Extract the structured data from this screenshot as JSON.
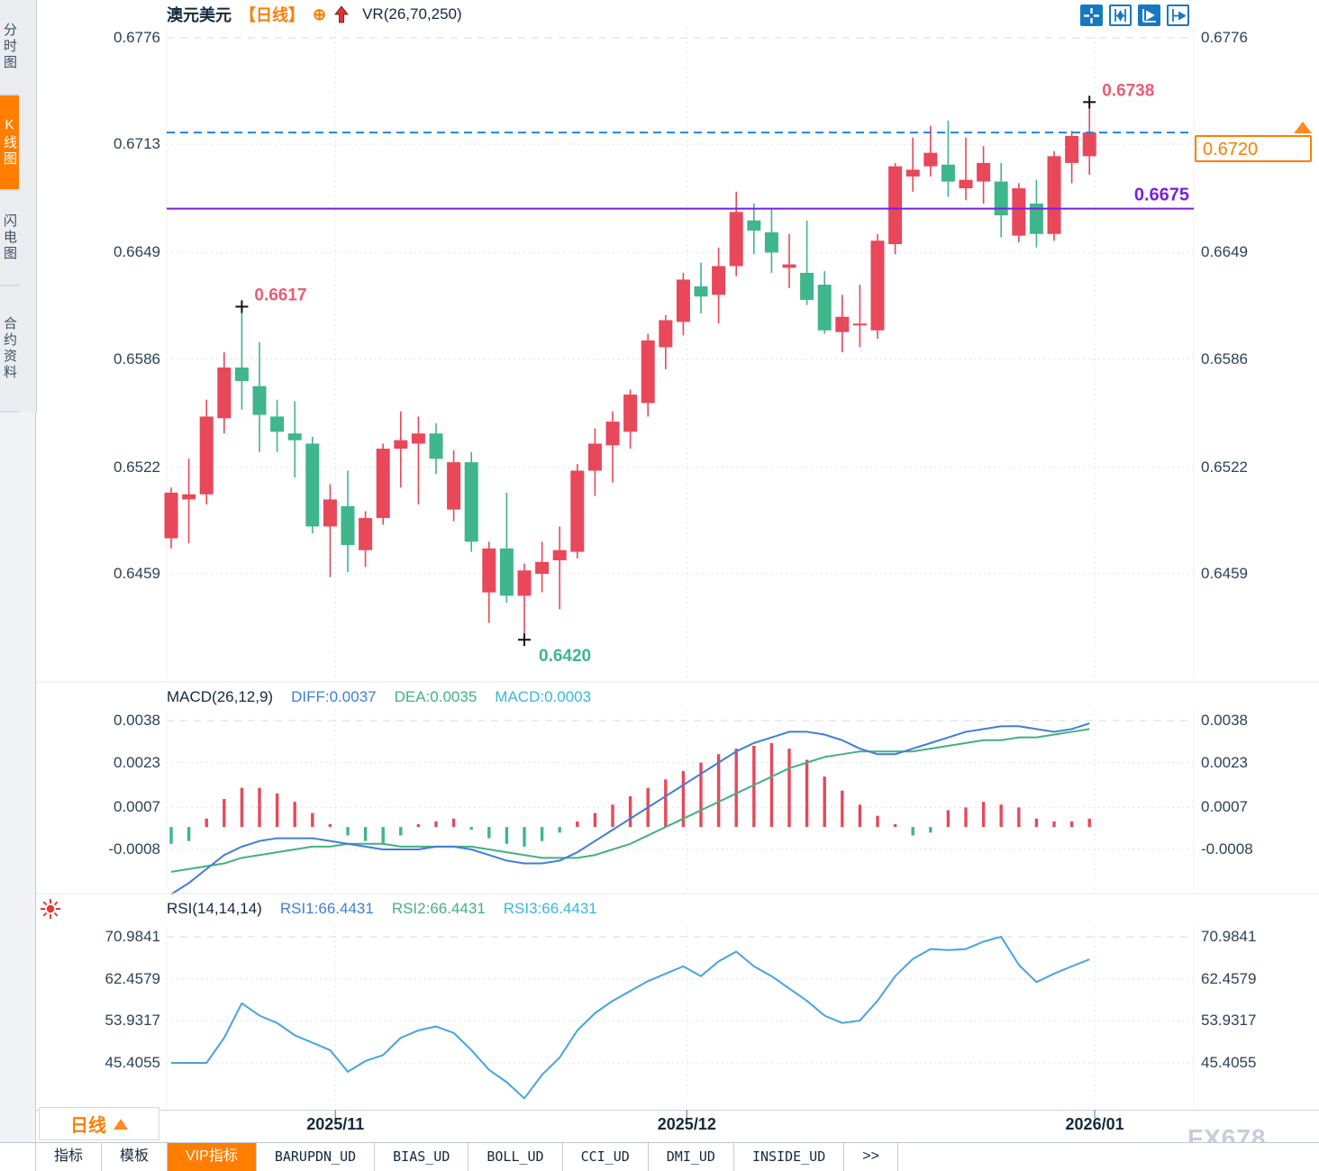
{
  "header": {
    "symbol": "澳元美元",
    "period_tag": "【日线】",
    "indicator_label": "VR(26,70,250)"
  },
  "toolbar_icons": [
    {
      "name": "crosshair-tool-icon",
      "active": true
    },
    {
      "name": "axis-scale-icon",
      "active": false
    },
    {
      "name": "auto-fit-chart-icon",
      "active": true
    },
    {
      "name": "scroll-to-latest-icon",
      "active": false
    }
  ],
  "sidebar": {
    "items": [
      {
        "label": "分时图",
        "active": false
      },
      {
        "label": "K线图",
        "active": true
      },
      {
        "label": "闪电图",
        "active": false
      },
      {
        "label": "合约资料",
        "active": false
      }
    ]
  },
  "macd_header": {
    "title": "MACD(26,12,9)",
    "diff": "DIFF:0.0037",
    "dea": "DEA:0.0035",
    "macd": "MACD:0.0003"
  },
  "rsi_header": {
    "title": "RSI(14,14,14)",
    "rsi1": "RSI1:66.4431",
    "rsi2": "RSI2:66.4431",
    "rsi3": "RSI3:66.4431"
  },
  "y_axis": {
    "main_left": [
      "0.6776",
      "0.6713",
      "0.6649",
      "0.6586",
      "0.6522",
      "0.6459"
    ],
    "main_right": [
      "0.6776",
      "0.6649",
      "0.6586",
      "0.6522",
      "0.6459"
    ],
    "macd": [
      "0.0038",
      "0.0023",
      "0.0007",
      "-0.0008"
    ],
    "rsi": [
      "70.9841",
      "62.4579",
      "53.9317",
      "45.4055"
    ]
  },
  "x_axis": [
    {
      "label": "2025/11",
      "i": 9.3
    },
    {
      "label": "2025/12",
      "i": 29.2
    },
    {
      "label": "2026/01",
      "i": 52.3
    }
  ],
  "price_box": {
    "value": "0.6720",
    "color": "#ff7e00"
  },
  "period_selector": {
    "label": "日线"
  },
  "tabs": [
    {
      "label": "指标",
      "active": false
    },
    {
      "label": "模板",
      "active": false
    },
    {
      "label": "VIP指标",
      "active": true
    },
    {
      "label": "BARUPDN_UD",
      "active": false
    },
    {
      "label": "BIAS_UD",
      "active": false
    },
    {
      "label": "BOLL_UD",
      "active": false
    },
    {
      "label": "CCI_UD",
      "active": false
    },
    {
      "label": "DMI_UD",
      "active": false
    },
    {
      "label": "INSIDE_UD",
      "active": false
    },
    {
      "label": ">>",
      "active": false
    }
  ],
  "watermark": "FX678",
  "chart_data": [
    {
      "type": "candlestick",
      "title": "澳元美元 日线",
      "up_color": "#e8485a",
      "down_color": "#3fb68b",
      "ylim": [
        0.642,
        0.6776
      ],
      "yticks": [
        0.6776,
        0.6713,
        0.6649,
        0.6586,
        0.6522,
        0.6459
      ],
      "candles": [
        [
          0.648,
          0.651,
          0.6474,
          0.6507
        ],
        [
          0.6503,
          0.6527,
          0.6477,
          0.6506
        ],
        [
          0.6506,
          0.6562,
          0.65,
          0.6552
        ],
        [
          0.6551,
          0.659,
          0.6542,
          0.6581
        ],
        [
          0.6581,
          0.6617,
          0.6556,
          0.6573
        ],
        [
          0.657,
          0.6596,
          0.6531,
          0.6553
        ],
        [
          0.6552,
          0.6562,
          0.6531,
          0.6543
        ],
        [
          0.6542,
          0.6561,
          0.6516,
          0.6538
        ],
        [
          0.6536,
          0.654,
          0.6483,
          0.6487
        ],
        [
          0.6487,
          0.6512,
          0.6457,
          0.6503
        ],
        [
          0.6499,
          0.652,
          0.646,
          0.6476
        ],
        [
          0.6473,
          0.6496,
          0.6463,
          0.6492
        ],
        [
          0.6492,
          0.6536,
          0.6488,
          0.6533
        ],
        [
          0.6533,
          0.6555,
          0.651,
          0.6538
        ],
        [
          0.6536,
          0.6552,
          0.65,
          0.6542
        ],
        [
          0.6542,
          0.6548,
          0.6518,
          0.6527
        ],
        [
          0.6497,
          0.6532,
          0.649,
          0.6525
        ],
        [
          0.6525,
          0.6531,
          0.6472,
          0.6478
        ],
        [
          0.6448,
          0.6478,
          0.643,
          0.6474
        ],
        [
          0.6474,
          0.6507,
          0.6442,
          0.6446
        ],
        [
          0.6446,
          0.6465,
          0.642,
          0.6461
        ],
        [
          0.6459,
          0.6478,
          0.6448,
          0.6466
        ],
        [
          0.6467,
          0.6487,
          0.6438,
          0.6473
        ],
        [
          0.6472,
          0.6524,
          0.6468,
          0.652
        ],
        [
          0.652,
          0.6545,
          0.6505,
          0.6536
        ],
        [
          0.6535,
          0.6555,
          0.6513,
          0.6549
        ],
        [
          0.6543,
          0.6568,
          0.6533,
          0.6565
        ],
        [
          0.656,
          0.6601,
          0.6552,
          0.6597
        ],
        [
          0.6593,
          0.6612,
          0.658,
          0.6609
        ],
        [
          0.6608,
          0.6637,
          0.66,
          0.6633
        ],
        [
          0.6629,
          0.6643,
          0.6613,
          0.6623
        ],
        [
          0.6624,
          0.6652,
          0.6607,
          0.6641
        ],
        [
          0.6641,
          0.6685,
          0.6635,
          0.6673
        ],
        [
          0.6668,
          0.6678,
          0.6648,
          0.6662
        ],
        [
          0.6661,
          0.6675,
          0.6637,
          0.6649
        ],
        [
          0.664,
          0.666,
          0.6628,
          0.6642
        ],
        [
          0.6637,
          0.6668,
          0.6618,
          0.6621
        ],
        [
          0.663,
          0.6638,
          0.6601,
          0.6603
        ],
        [
          0.6602,
          0.6624,
          0.659,
          0.6611
        ],
        [
          0.6606,
          0.663,
          0.6593,
          0.6607
        ],
        [
          0.6603,
          0.666,
          0.6598,
          0.6656
        ],
        [
          0.6654,
          0.6702,
          0.6648,
          0.67
        ],
        [
          0.6694,
          0.6717,
          0.6685,
          0.6698
        ],
        [
          0.67,
          0.6724,
          0.6694,
          0.6708
        ],
        [
          0.6701,
          0.6727,
          0.6682,
          0.6691
        ],
        [
          0.6687,
          0.6717,
          0.668,
          0.6692
        ],
        [
          0.6691,
          0.6712,
          0.6678,
          0.6702
        ],
        [
          0.6691,
          0.6702,
          0.6658,
          0.6671
        ],
        [
          0.6659,
          0.669,
          0.6655,
          0.6687
        ],
        [
          0.6678,
          0.6692,
          0.6652,
          0.666
        ],
        [
          0.666,
          0.6709,
          0.6656,
          0.6706
        ],
        [
          0.6702,
          0.6721,
          0.669,
          0.6718
        ],
        [
          0.6706,
          0.6738,
          0.6695,
          0.672
        ]
      ],
      "annotations": [
        {
          "i": 4,
          "price": 0.6617,
          "label": "0.6617",
          "at": "high",
          "color": "#e85d75"
        },
        {
          "i": 20,
          "price": 0.642,
          "label": "0.6420",
          "at": "low",
          "color": "#3fb68b"
        },
        {
          "i": 52,
          "price": 0.6738,
          "label": "0.6738",
          "at": "high",
          "color": "#e85d75"
        }
      ],
      "hlines": [
        {
          "value": 0.672,
          "color": "#1d86e8",
          "dash": "9 6",
          "label": ""
        },
        {
          "value": 0.6675,
          "color": "#7a1fe0",
          "dash": "",
          "label": "0.6675"
        }
      ],
      "last_price": 0.672
    },
    {
      "type": "macd",
      "title": "MACD(26,12,9)",
      "diff": 0.0037,
      "dea": 0.0035,
      "macd": 0.0003,
      "yticks": [
        0.0038,
        0.0023,
        0.0007,
        -0.0008
      ],
      "histogram": [
        -0.0006,
        -0.0005,
        0.0003,
        0.001,
        0.0014,
        0.0014,
        0.0012,
        0.0009,
        0.0005,
        0.0001,
        -0.0003,
        -0.0005,
        -0.0006,
        -0.0003,
        0.0001,
        0.0002,
        0.0003,
        -0.0001,
        -0.0004,
        -0.0006,
        -0.0007,
        -0.0005,
        -0.0002,
        0.0002,
        0.0005,
        0.0008,
        0.0011,
        0.0014,
        0.0017,
        0.002,
        0.0023,
        0.0026,
        0.0028,
        0.0029,
        0.003,
        0.0028,
        0.0024,
        0.0018,
        0.0013,
        0.0008,
        0.0004,
        0.0001,
        -0.0003,
        -0.0002,
        0.0006,
        0.0007,
        0.0009,
        0.0008,
        0.0007,
        0.0003,
        0.0002,
        0.0002,
        0.0003
      ],
      "diff_series": [
        -0.0024,
        -0.002,
        -0.0015,
        -0.001,
        -0.0007,
        -0.0005,
        -0.0004,
        -0.0004,
        -0.0004,
        -0.0005,
        -0.0006,
        -0.0007,
        -0.0008,
        -0.0008,
        -0.0008,
        -0.0007,
        -0.0007,
        -0.0008,
        -0.001,
        -0.0012,
        -0.0013,
        -0.0013,
        -0.0012,
        -0.0009,
        -0.0005,
        -0.0001,
        0.0003,
        0.0007,
        0.0011,
        0.0015,
        0.0019,
        0.0023,
        0.0027,
        0.003,
        0.0032,
        0.0034,
        0.0034,
        0.0033,
        0.0031,
        0.0028,
        0.0026,
        0.0026,
        0.0028,
        0.003,
        0.0032,
        0.0034,
        0.0035,
        0.0036,
        0.0036,
        0.0035,
        0.0034,
        0.0035,
        0.0037
      ],
      "dea_series": [
        -0.0016,
        -0.0015,
        -0.0014,
        -0.0013,
        -0.0011,
        -0.001,
        -0.0009,
        -0.0008,
        -0.0007,
        -0.0007,
        -0.0006,
        -0.0006,
        -0.0006,
        -0.0007,
        -0.0007,
        -0.0007,
        -0.0007,
        -0.0007,
        -0.0008,
        -0.0009,
        -0.001,
        -0.0011,
        -0.0011,
        -0.0011,
        -0.001,
        -0.0008,
        -0.0006,
        -0.0003,
        0.0,
        0.0003,
        0.0006,
        0.0009,
        0.0012,
        0.0015,
        0.0018,
        0.0021,
        0.0023,
        0.0025,
        0.0026,
        0.0027,
        0.0027,
        0.0027,
        0.0027,
        0.0028,
        0.0029,
        0.003,
        0.0031,
        0.0031,
        0.0032,
        0.0032,
        0.0033,
        0.0034,
        0.0035
      ],
      "colors": {
        "hist_up": "#e8485a",
        "hist_down": "#3fb68b",
        "diff": "#3f7ed8",
        "dea": "#45b07e"
      }
    },
    {
      "type": "line",
      "title": "RSI(14,14,14)",
      "rsi1": 66.4431,
      "rsi2": 66.4431,
      "rsi3": 66.4431,
      "yticks": [
        70.9841,
        62.4579,
        53.9317,
        45.4055
      ],
      "values": [
        45.4,
        45.4,
        45.4,
        50.5,
        57.5,
        55.0,
        53.5,
        51.0,
        49.5,
        48.0,
        43.6,
        45.8,
        47.0,
        50.5,
        52.0,
        52.8,
        51.5,
        48.0,
        44.0,
        41.5,
        38.2,
        43.0,
        46.5,
        52.0,
        55.5,
        58.0,
        60.0,
        62.0,
        63.5,
        65.0,
        63.0,
        66.0,
        68.0,
        65.0,
        63.0,
        60.5,
        58.0,
        55.0,
        53.5,
        54.0,
        58.0,
        63.0,
        66.5,
        68.5,
        68.3,
        68.5,
        70.0,
        71.0,
        65.3,
        61.8,
        63.5,
        65.0,
        66.4
      ],
      "color": "#45a5df"
    }
  ]
}
